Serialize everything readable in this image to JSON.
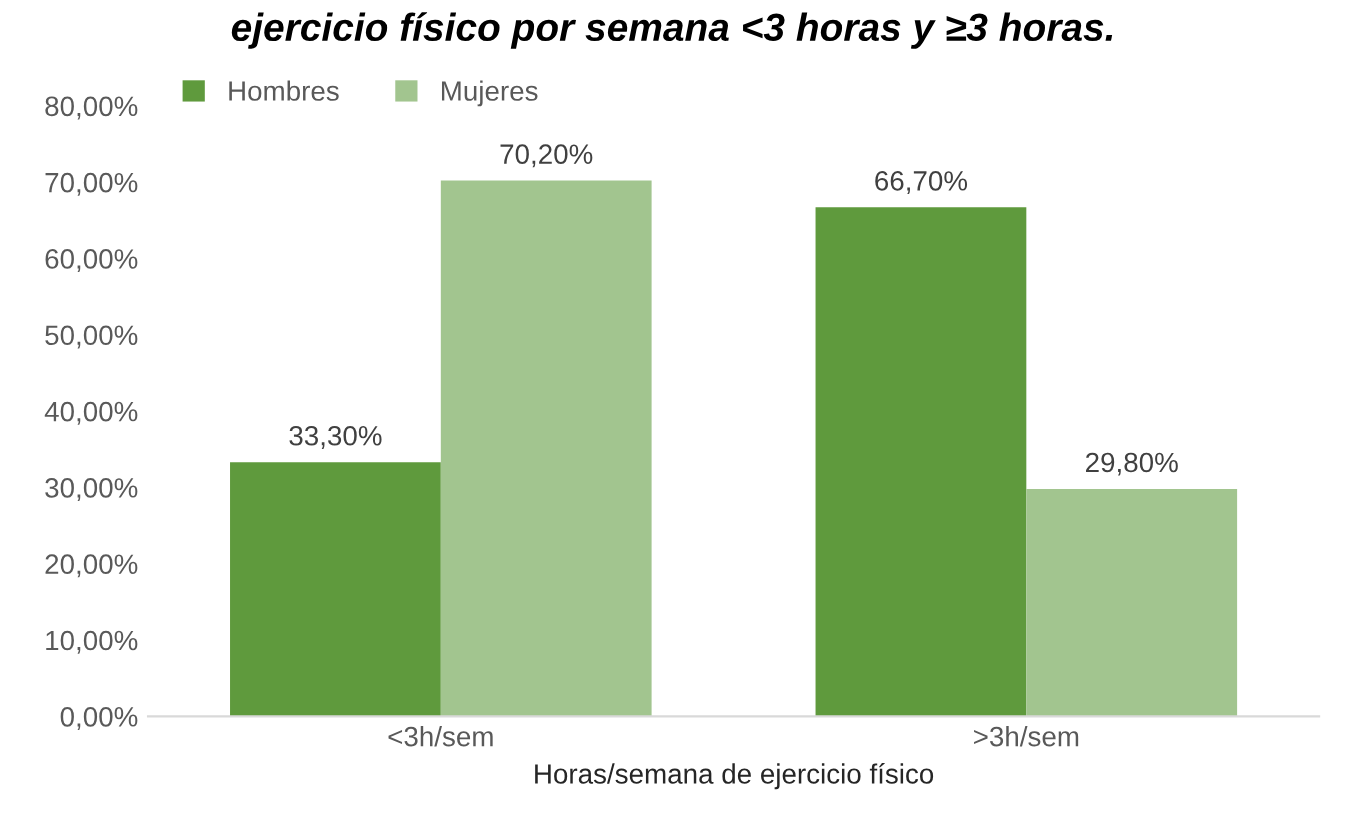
{
  "chart_data": {
    "type": "bar",
    "title": "ejercicio físico por semana <3 horas y ≥3 horas.",
    "xlabel": "Horas/semana de ejercicio físico",
    "categories": [
      "<3h/sem",
      ">3h/sem"
    ],
    "series": [
      {
        "name": "Hombres",
        "color": "#5f9a3d",
        "values": [
          33.3,
          66.7
        ],
        "value_labels": [
          "33,30%",
          "66,70%"
        ]
      },
      {
        "name": "Mujeres",
        "color": "#a2c58f",
        "values": [
          70.2,
          29.8
        ],
        "value_labels": [
          "70,20%",
          "29,80%"
        ]
      }
    ],
    "ylim": [
      0,
      80
    ],
    "yticks": [
      {
        "value": 0,
        "label": "0,00%"
      },
      {
        "value": 10,
        "label": "10,00%"
      },
      {
        "value": 20,
        "label": "20,00%"
      },
      {
        "value": 30,
        "label": "30,00%"
      },
      {
        "value": 40,
        "label": "40,00%"
      },
      {
        "value": 50,
        "label": "50,00%"
      },
      {
        "value": 60,
        "label": "60,00%"
      },
      {
        "value": 70,
        "label": "70,00%"
      },
      {
        "value": 80,
        "label": "80,00%"
      }
    ],
    "legend": "top left",
    "grid": false
  }
}
